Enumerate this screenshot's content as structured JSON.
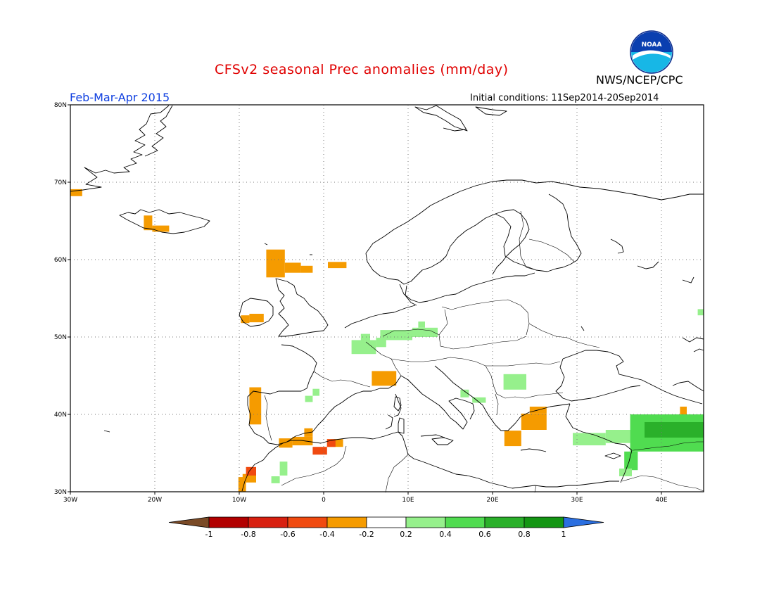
{
  "header": {
    "title": "CFSv2 seasonal Prec anomalies (mm/day)",
    "period": "Feb-Mar-Apr 2015",
    "initial_conditions": "Initial conditions: 11Sep2014-20Sep2014",
    "agency": "NWS/NCEP/CPC",
    "logo_text": "NOAA"
  },
  "map": {
    "lon_range": [
      -30,
      45
    ],
    "lat_range": [
      30,
      80
    ],
    "lon_ticks": [
      {
        "v": -30,
        "label": "30W"
      },
      {
        "v": -20,
        "label": "20W"
      },
      {
        "v": -10,
        "label": "10W"
      },
      {
        "v": 0,
        "label": "0"
      },
      {
        "v": 10,
        "label": "10E"
      },
      {
        "v": 20,
        "label": "20E"
      },
      {
        "v": 30,
        "label": "30E"
      },
      {
        "v": 40,
        "label": "40E"
      }
    ],
    "lat_ticks": [
      {
        "v": 30,
        "label": "30N"
      },
      {
        "v": 40,
        "label": "40N"
      },
      {
        "v": 50,
        "label": "50N"
      },
      {
        "v": 60,
        "label": "60N"
      },
      {
        "v": 70,
        "label": "70N"
      },
      {
        "v": 80,
        "label": "80N"
      }
    ],
    "grid": "dotted"
  },
  "colorbar": {
    "labels": [
      "-1",
      "-0.8",
      "-0.6",
      "-0.4",
      "-0.2",
      "0.2",
      "0.4",
      "0.6",
      "0.8",
      "1"
    ],
    "low_color": "#7a4a26",
    "high_color": "#2b6fe0",
    "colors": [
      "#b20000",
      "#d82010",
      "#f04a10",
      "#f59b00",
      "#ffffff",
      "#96f08c",
      "#50dc50",
      "#2ab02a",
      "#149614"
    ]
  },
  "chart_data": {
    "type": "heatmap",
    "title": "CFSv2 seasonal Prec anomalies (mm/day)",
    "units": "mm/day",
    "cells": [
      {
        "lon": [
          -30,
          -28.6
        ],
        "lat": [
          68.2,
          69.1
        ],
        "v": -0.3
      },
      {
        "lon": [
          -21.3,
          -20.3
        ],
        "lat": [
          63.8,
          65.7
        ],
        "v": -0.3
      },
      {
        "lon": [
          -20.3,
          -18.3
        ],
        "lat": [
          63.6,
          64.4
        ],
        "v": -0.3
      },
      {
        "lon": [
          -6.8,
          -4.6
        ],
        "lat": [
          57.7,
          61.3
        ],
        "v": -0.3
      },
      {
        "lon": [
          -4.6,
          -2.7
        ],
        "lat": [
          58.3,
          59.6
        ],
        "v": -0.3
      },
      {
        "lon": [
          -2.7,
          -1.3
        ],
        "lat": [
          58.3,
          59.2
        ],
        "v": -0.3
      },
      {
        "lon": [
          0.5,
          2.7
        ],
        "lat": [
          58.9,
          59.7
        ],
        "v": -0.3
      },
      {
        "lon": [
          -9.8,
          -8.8
        ],
        "lat": [
          51.8,
          52.8
        ],
        "v": -0.3
      },
      {
        "lon": [
          -8.8,
          -7.1
        ],
        "lat": [
          51.9,
          53.0
        ],
        "v": -0.3
      },
      {
        "lon": [
          -8.8,
          -7.4
        ],
        "lat": [
          38.7,
          43.5
        ],
        "v": -0.3
      },
      {
        "lon": [
          -3.7,
          -1.3
        ],
        "lat": [
          36.0,
          37.1
        ],
        "v": -0.3
      },
      {
        "lon": [
          -5.3,
          -3.7
        ],
        "lat": [
          35.7,
          36.9
        ],
        "v": -0.3
      },
      {
        "lon": [
          -2.3,
          -1.3
        ],
        "lat": [
          37.1,
          38.2
        ],
        "v": -0.3
      },
      {
        "lon": [
          5.7,
          8.6
        ],
        "lat": [
          43.7,
          45.6
        ],
        "v": -0.3
      },
      {
        "lon": [
          21.4,
          23.4
        ],
        "lat": [
          35.9,
          37.9
        ],
        "v": -0.3
      },
      {
        "lon": [
          23.4,
          26.4
        ],
        "lat": [
          38.0,
          40.1
        ],
        "v": -0.3
      },
      {
        "lon": [
          24.4,
          26.4
        ],
        "lat": [
          40.1,
          41.0
        ],
        "v": -0.3
      },
      {
        "lon": [
          -9.6,
          -8.0
        ],
        "lat": [
          31.2,
          32.3
        ],
        "v": -0.3
      },
      {
        "lon": [
          -10.1,
          -9.2
        ],
        "lat": [
          30.0,
          31.9
        ],
        "v": -0.3
      },
      {
        "lon": [
          42.2,
          43.0
        ],
        "lat": [
          40.0,
          41.0
        ],
        "v": -0.3
      },
      {
        "lon": [
          -1.3,
          0.4
        ],
        "lat": [
          34.8,
          35.8
        ],
        "v": -0.5
      },
      {
        "lon": 0.4,
        "lon_end": 2.3,
        "lat": [
          35.8,
          36.8
        ],
        "v": -0.3
      },
      {
        "lon": [
          0.4,
          1.4
        ],
        "lat": [
          35.8,
          36.8
        ],
        "v": -0.5
      },
      {
        "lon": [
          -9.2,
          -8.0
        ],
        "lat": [
          32.1,
          33.2
        ],
        "v": -0.5
      },
      {
        "lon": [
          4.4,
          5.5
        ],
        "lat": [
          49.2,
          50.4
        ],
        "v": 0.3
      },
      {
        "lon": [
          6.7,
          10.5
        ],
        "lat": [
          49.6,
          50.9
        ],
        "v": 0.3
      },
      {
        "lon": [
          10.5,
          13.5
        ],
        "lat": [
          50.0,
          51.2
        ],
        "v": 0.3
      },
      {
        "lon": [
          11.2,
          12.0
        ],
        "lat": [
          51.2,
          52.0
        ],
        "v": 0.3
      },
      {
        "lon": [
          3.3,
          6.2
        ],
        "lat": [
          47.8,
          49.6
        ],
        "v": 0.3
      },
      {
        "lon": [
          6.2,
          7.4
        ],
        "lat": [
          48.7,
          49.9
        ],
        "v": 0.3
      },
      {
        "lon": [
          -2.2,
          -1.3
        ],
        "lat": [
          41.6,
          42.4
        ],
        "v": 0.3
      },
      {
        "lon": [
          -1.3,
          -0.5
        ],
        "lat": [
          42.4,
          43.3
        ],
        "v": 0.3
      },
      {
        "lon": [
          -5.2,
          -4.3
        ],
        "lat": [
          32.1,
          33.9
        ],
        "v": 0.3
      },
      {
        "lon": [
          -6.2,
          -5.2
        ],
        "lat": [
          31.1,
          32.0
        ],
        "v": 0.3
      },
      {
        "lon": [
          16.2,
          17.2
        ],
        "lat": [
          42.2,
          43.2
        ],
        "v": 0.3
      },
      {
        "lon": [
          17.6,
          19.2
        ],
        "lat": [
          41.5,
          42.2
        ],
        "v": 0.3
      },
      {
        "lon": [
          21.3,
          24.0
        ],
        "lat": [
          43.2,
          45.2
        ],
        "v": 0.3
      },
      {
        "lon": [
          29.5,
          33.4
        ],
        "lat": [
          36.0,
          37.6
        ],
        "v": 0.3
      },
      {
        "lon": [
          33.4,
          36.3
        ],
        "lat": [
          36.3,
          38.0
        ],
        "v": 0.3
      },
      {
        "lon": [
          36.3,
          45.0
        ],
        "lat": [
          35.2,
          40.0
        ],
        "v": 0.5
      },
      {
        "lon": [
          38.0,
          45.0
        ],
        "lat": [
          37.0,
          39.0
        ],
        "v": 0.6
      },
      {
        "lon": [
          35.6,
          37.2
        ],
        "lat": [
          32.8,
          35.2
        ],
        "v": 0.4
      },
      {
        "lon": [
          35.0,
          36.5
        ],
        "lat": [
          32.0,
          33.0
        ],
        "v": 0.3
      },
      {
        "lon": [
          44.3,
          45.0
        ],
        "lat": [
          52.8,
          53.6
        ],
        "v": 0.3
      }
    ]
  }
}
